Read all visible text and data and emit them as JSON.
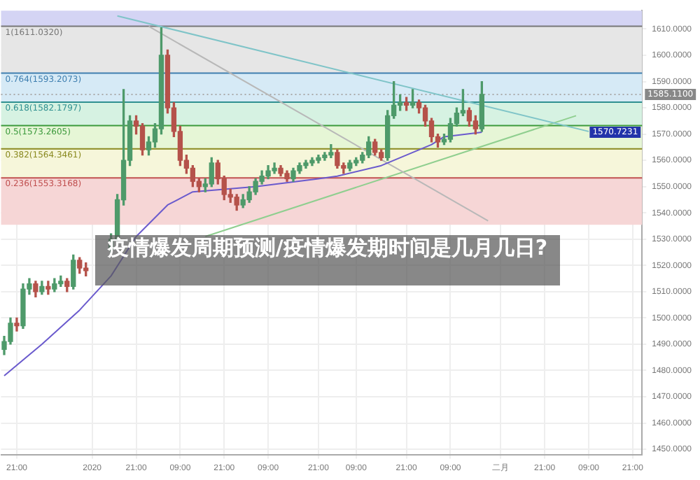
{
  "chart_data": {
    "type": "candlestick",
    "title": "疫情爆发周期预测/疫情爆发期时间是几月几日?",
    "categories": [
      null,
      null,
      "21:00",
      null,
      null,
      null,
      null,
      null,
      null,
      null,
      null,
      null,
      null,
      null,
      "2020",
      null,
      null,
      null,
      null,
      null,
      null,
      "21:00",
      null,
      null,
      null,
      null,
      null,
      null,
      "09:00",
      null,
      null,
      null,
      null,
      null,
      null,
      "21:00",
      null,
      null,
      null,
      null,
      null,
      null,
      "09:00",
      null,
      null,
      null,
      null,
      null,
      null,
      null,
      "21:00",
      null,
      null,
      null,
      null,
      null,
      "09:00",
      null,
      null,
      null,
      null,
      null,
      null,
      null,
      "21:00",
      null,
      null,
      null,
      null,
      null,
      null,
      "09:00",
      null,
      null,
      null,
      null,
      null,
      null,
      null,
      "二月",
      null,
      null,
      null,
      null,
      null,
      null,
      "21:00",
      null,
      null,
      null,
      null,
      null,
      null,
      "09:00",
      null,
      null,
      null,
      null,
      null,
      null,
      "21:00",
      null
    ],
    "ylim": [
      1448,
      1617
    ],
    "yticks": [
      {
        "value": 1450,
        "label": "1450.0000"
      },
      {
        "value": 1460,
        "label": "1460.0000"
      },
      {
        "value": 1470,
        "label": "1470.0000"
      },
      {
        "value": 1480,
        "label": "1480.0000"
      },
      {
        "value": 1490,
        "label": "1490.0000"
      },
      {
        "value": 1500,
        "label": "1500.0000"
      },
      {
        "value": 1510,
        "label": "1510.0000"
      },
      {
        "value": 1520,
        "label": "1520.0000"
      },
      {
        "value": 1530,
        "label": "1530.0000"
      },
      {
        "value": 1540,
        "label": "1540.0000"
      },
      {
        "value": 1550,
        "label": "1550.0000"
      },
      {
        "value": 1560,
        "label": "1560.0000"
      },
      {
        "value": 1570,
        "label": "1570.0000"
      },
      {
        "value": 1580,
        "label": "1580.0000"
      },
      {
        "value": 1590,
        "label": "1590.0000"
      },
      {
        "value": 1600,
        "label": "1600.0000"
      },
      {
        "value": 1610,
        "label": "1610.0000"
      }
    ],
    "grid": true,
    "series": [
      {
        "type": "candlestick",
        "ohlc": [
          [
            1488,
            1493,
            1486,
            1491
          ],
          [
            1491,
            1500,
            1490,
            1498
          ],
          [
            1498,
            1500,
            1495,
            1497
          ],
          [
            1497,
            1513,
            1496,
            1511
          ],
          [
            1511,
            1515,
            1509,
            1513
          ],
          [
            1513,
            1514,
            1508,
            1510
          ],
          [
            1510,
            1514,
            1509,
            1512
          ],
          [
            1512,
            1514,
            1509,
            1511
          ],
          [
            1511,
            1515,
            1510,
            1513
          ],
          [
            1513,
            1516,
            1512,
            1514
          ],
          [
            1514,
            1515,
            1510,
            1512
          ],
          [
            1512,
            1524,
            1511,
            1522
          ],
          [
            1522,
            1523,
            1517,
            1519
          ],
          [
            1519,
            1521,
            1516,
            1518
          ],
          null,
          null,
          null,
          [
            1526,
            1532,
            1525,
            1530
          ],
          [
            1530,
            1547,
            1529,
            1545
          ],
          [
            1545,
            1587,
            1543,
            1560
          ],
          [
            1560,
            1577,
            1558,
            1575
          ],
          [
            1575,
            1577,
            1570,
            1573
          ],
          [
            1573,
            1574,
            1562,
            1564
          ],
          [
            1564,
            1569,
            1562,
            1567
          ],
          [
            1567,
            1574,
            1565,
            1572
          ],
          [
            1572,
            1610.5,
            1570,
            1600
          ],
          [
            1600,
            1602,
            1578,
            1580
          ],
          [
            1580,
            1582,
            1569,
            1571
          ],
          [
            1571,
            1573,
            1558,
            1560
          ],
          [
            1560,
            1562,
            1555,
            1557
          ],
          [
            1557,
            1558,
            1550,
            1552
          ],
          [
            1552,
            1553,
            1548,
            1550
          ],
          [
            1550,
            1553,
            1548,
            1551
          ],
          [
            1551,
            1561,
            1550,
            1559
          ],
          [
            1559,
            1560,
            1551,
            1553
          ],
          [
            1553,
            1554,
            1545,
            1547
          ],
          [
            1547,
            1549,
            1544,
            1546
          ],
          [
            1546,
            1547,
            1541,
            1543
          ],
          [
            1543,
            1547,
            1542,
            1545
          ],
          [
            1545,
            1550,
            1544,
            1548
          ],
          [
            1548,
            1553,
            1547,
            1552
          ],
          [
            1552,
            1556,
            1551,
            1554
          ],
          [
            1554,
            1558,
            1553,
            1556
          ],
          [
            1556,
            1559,
            1555,
            1557
          ],
          [
            1557,
            1558,
            1554,
            1555
          ],
          [
            1555,
            1556,
            1552,
            1553
          ],
          [
            1553,
            1557,
            1552,
            1556
          ],
          [
            1556,
            1559,
            1555,
            1558
          ],
          [
            1558,
            1560,
            1557,
            1559
          ],
          [
            1559,
            1561,
            1558,
            1560
          ],
          [
            1560,
            1562,
            1559,
            1561
          ],
          [
            1561,
            1563,
            1560,
            1562
          ],
          [
            1562,
            1566,
            1561,
            1563
          ],
          [
            1563,
            1564,
            1557,
            1558
          ],
          [
            1558,
            1559,
            1555,
            1557
          ],
          [
            1557,
            1560,
            1556,
            1559
          ],
          [
            1559,
            1561,
            1558,
            1560
          ],
          [
            1560,
            1563,
            1559,
            1562
          ],
          [
            1562,
            1569,
            1561,
            1567
          ],
          [
            1567,
            1568,
            1562,
            1563
          ],
          [
            1563,
            1564,
            1560,
            1561
          ],
          [
            1561,
            1579,
            1560,
            1577
          ],
          [
            1577,
            1590,
            1576,
            1581
          ],
          [
            1581,
            1585,
            1579,
            1582
          ],
          [
            1582,
            1584,
            1579,
            1581
          ],
          [
            1581,
            1587,
            1580,
            1582
          ],
          [
            1582,
            1583,
            1578,
            1580
          ],
          [
            1580,
            1581,
            1573,
            1575
          ],
          [
            1575,
            1576,
            1567,
            1569
          ],
          [
            1569,
            1570,
            1565,
            1567
          ],
          [
            1567,
            1570,
            1566,
            1568
          ],
          [
            1568,
            1576,
            1567,
            1574
          ],
          [
            1574,
            1580,
            1573,
            1578
          ],
          [
            1578,
            1587,
            1577,
            1579
          ],
          [
            1579,
            1580,
            1573,
            1575
          ],
          [
            1575,
            1577,
            1570,
            1572
          ],
          [
            1572,
            1590,
            1571,
            1585.11
          ],
          null,
          null,
          null,
          null,
          null,
          null,
          null,
          null,
          null,
          null,
          null,
          null,
          null,
          null,
          null,
          null,
          null,
          null,
          null,
          null,
          null,
          null,
          null,
          null,
          null
        ],
        "colors": [
          "#4e9a6a",
          "#4e9a6a",
          "#b5524a",
          "#4e9a6a",
          "#4e9a6a",
          "#b5524a",
          "#4e9a6a",
          "#b5524a",
          "#4e9a6a",
          "#4e9a6a",
          "#b5524a",
          "#4e9a6a",
          "#b5524a",
          "#b5524a",
          null,
          null,
          null,
          "#4e9a6a",
          "#4e9a6a",
          "#4e9a6a",
          "#4e9a6a",
          "#b5524a",
          "#b5524a",
          "#4e9a6a",
          "#4e9a6a",
          "#4e9a6a",
          "#b5524a",
          "#b5524a",
          "#b5524a",
          "#b5524a",
          "#b5524a",
          "#b5524a",
          "#4e9a6a",
          "#4e9a6a",
          "#b5524a",
          "#b5524a",
          "#b5524a",
          "#b5524a",
          "#4e9a6a",
          "#4e9a6a",
          "#4e9a6a",
          "#4e9a6a",
          "#4e9a6a",
          "#4e9a6a",
          "#b5524a",
          "#b5524a",
          "#4e9a6a",
          "#4e9a6a",
          "#4e9a6a",
          "#4e9a6a",
          "#4e9a6a",
          "#4e9a6a",
          "#4e9a6a",
          "#b5524a",
          "#b5524a",
          "#4e9a6a",
          "#4e9a6a",
          "#4e9a6a",
          "#4e9a6a",
          "#b5524a",
          "#b5524a",
          "#4e9a6a",
          "#4e9a6a",
          "#4e9a6a",
          "#b5524a",
          "#4e9a6a",
          "#b5524a",
          "#b5524a",
          "#b5524a",
          "#b5524a",
          "#4e9a6a",
          "#4e9a6a",
          "#4e9a6a",
          "#4e9a6a",
          "#b5524a",
          "#b5524a",
          "#4e9a6a",
          null,
          null,
          null,
          null,
          null,
          null,
          null,
          null,
          null,
          null,
          null,
          null,
          null,
          null,
          null,
          null,
          null,
          null,
          null,
          null,
          null,
          null,
          null,
          null,
          null
        ]
      },
      {
        "type": "line",
        "color": "#6a5acd",
        "values": [
          1478,
          null,
          null,
          null,
          null,
          null,
          1490,
          null,
          null,
          null,
          null,
          null,
          1503,
          null,
          null,
          null,
          null,
          1516,
          null,
          null,
          null,
          1531,
          null,
          null,
          null,
          null,
          1543,
          null,
          null,
          null,
          1548,
          null,
          null,
          null,
          null,
          null,
          null,
          null,
          null,
          null,
          1550,
          null,
          null,
          null,
          null,
          null,
          null,
          null,
          null,
          null,
          1553,
          null,
          null,
          1554,
          null,
          null,
          null,
          null,
          null,
          null,
          1558,
          null,
          null,
          null,
          null,
          null,
          null,
          null,
          1566,
          null,
          1569,
          null,
          null,
          null,
          null,
          null,
          1570.7,
          null,
          null,
          null,
          null,
          null,
          null,
          null,
          null,
          null,
          null,
          null,
          null,
          null,
          null,
          null,
          null,
          null,
          null,
          null,
          null,
          null,
          null,
          null,
          null,
          null
        ]
      },
      {
        "type": "line",
        "color": "#7fc4c8",
        "values": [
          null,
          null,
          null,
          null,
          null,
          null,
          null,
          null,
          null,
          null,
          null,
          null,
          null,
          null,
          null,
          null,
          null,
          null,
          1615,
          null,
          null,
          null,
          null,
          null,
          null,
          null,
          null,
          null,
          null,
          null,
          null,
          null,
          null,
          null,
          null,
          null,
          null,
          null,
          null,
          null,
          null,
          null,
          null,
          null,
          null,
          null,
          null,
          null,
          null,
          null,
          null,
          null,
          null,
          null,
          null,
          null,
          null,
          null,
          null,
          null,
          null,
          null,
          null,
          null,
          null,
          null,
          null,
          null,
          null,
          null,
          null,
          null,
          null,
          null,
          null,
          null,
          null,
          null,
          null,
          null,
          null,
          null,
          null,
          null,
          null,
          null,
          null,
          null,
          null,
          null,
          null,
          null,
          null,
          1571,
          null,
          null,
          null,
          null,
          null,
          null,
          null,
          null
        ]
      },
      {
        "type": "line",
        "color": "#b8b8b8",
        "values": [
          null,
          null,
          null,
          null,
          null,
          null,
          null,
          null,
          null,
          null,
          null,
          null,
          null,
          null,
          null,
          null,
          null,
          null,
          null,
          null,
          null,
          null,
          null,
          1611,
          null,
          null,
          null,
          null,
          null,
          null,
          null,
          null,
          null,
          null,
          null,
          null,
          null,
          null,
          null,
          null,
          null,
          null,
          null,
          null,
          null,
          null,
          null,
          null,
          null,
          null,
          null,
          null,
          null,
          null,
          null,
          null,
          null,
          null,
          null,
          null,
          null,
          null,
          null,
          null,
          null,
          null,
          null,
          null,
          null,
          null,
          null,
          null,
          null,
          null,
          null,
          null,
          null,
          1537,
          null,
          null,
          null,
          null,
          null,
          null,
          null,
          null,
          null,
          null,
          null,
          null,
          null,
          null,
          null,
          null,
          null,
          null,
          null,
          null,
          null,
          null,
          null,
          null
        ]
      },
      {
        "type": "line",
        "color": "#8fcf8f",
        "values": [
          null,
          null,
          null,
          null,
          null,
          null,
          null,
          null,
          null,
          null,
          null,
          null,
          null,
          null,
          null,
          null,
          null,
          null,
          null,
          null,
          null,
          null,
          null,
          null,
          null,
          null,
          null,
          null,
          null,
          null,
          null,
          null,
          1531,
          null,
          null,
          null,
          null,
          null,
          null,
          null,
          null,
          null,
          null,
          null,
          null,
          null,
          null,
          null,
          null,
          null,
          null,
          null,
          null,
          null,
          null,
          null,
          null,
          null,
          null,
          null,
          null,
          null,
          null,
          null,
          null,
          null,
          null,
          null,
          null,
          null,
          null,
          null,
          null,
          null,
          null,
          null,
          null,
          null,
          null,
          null,
          null,
          null,
          null,
          null,
          null,
          null,
          null,
          null,
          null,
          null,
          null,
          1577,
          null,
          null,
          null,
          null,
          null,
          null,
          null,
          null,
          null,
          null
        ]
      }
    ],
    "bands": [
      {
        "axis": "y",
        "from": 1611.032,
        "to": 1617,
        "color": "#d4d4f4"
      },
      {
        "axis": "y",
        "from": 1593.2073,
        "to": 1611.032,
        "color": "#e6e6e6"
      },
      {
        "axis": "y",
        "from": 1582.1797,
        "to": 1593.2073,
        "color": "#d6eaf6"
      },
      {
        "axis": "y",
        "from": 1573.2605,
        "to": 1582.1797,
        "color": "#d6f2e2"
      },
      {
        "axis": "y",
        "from": 1564.3461,
        "to": 1573.2605,
        "color": "#e6f6d6"
      },
      {
        "axis": "y",
        "from": 1553.3168,
        "to": 1564.3461,
        "color": "#f6f6da"
      },
      {
        "axis": "y",
        "from": 1535.4885,
        "to": 1553.3168,
        "color": "#f6d6d6"
      }
    ],
    "ref_lines": [
      {
        "axis": "y",
        "value": 1611.032,
        "label": "1(1611.0320)",
        "color": "#777777"
      },
      {
        "axis": "y",
        "value": 1593.2073,
        "label": "0.764(1593.2073)",
        "color": "#3f7fb0"
      },
      {
        "axis": "y",
        "value": 1582.1797,
        "label": "0.618(1582.1797)",
        "color": "#2f9090"
      },
      {
        "axis": "y",
        "value": 1573.2605,
        "label": "0.5(1573.2605)",
        "color": "#3c9a3c"
      },
      {
        "axis": "y",
        "value": 1564.3461,
        "label": "0.382(1564.3461)",
        "color": "#8a8a20"
      },
      {
        "axis": "y",
        "value": 1553.3168,
        "label": "0.236(1553.3168)",
        "color": "#c05050"
      },
      {
        "axis": "y",
        "value": 1585.11,
        "label": "1585.1100",
        "color": "#aaaaaa",
        "line_style": "dotted"
      }
    ],
    "annotations": [
      "1570.7231"
    ]
  }
}
